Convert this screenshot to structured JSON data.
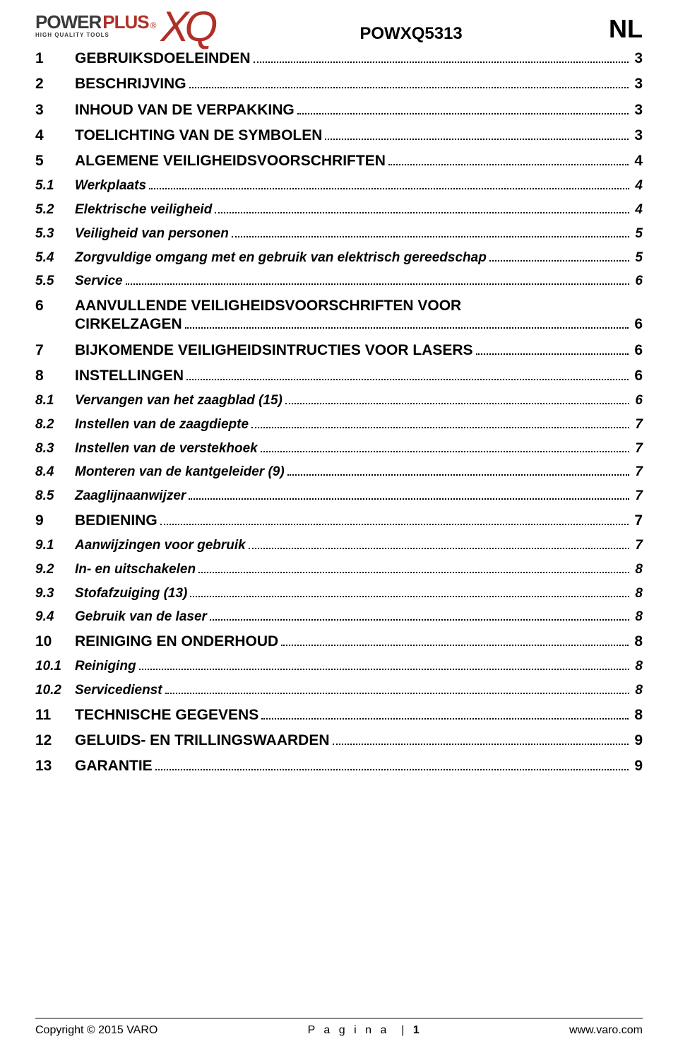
{
  "brand": {
    "word1": "POWER",
    "word2": "PLUS",
    "tagline": "HIGH QUALITY TOOLS",
    "sub_logo": "XQ",
    "color_primary": "#b03028",
    "color_secondary": "#3a3a3a"
  },
  "header": {
    "model": "POWXQ5313",
    "lang": "NL",
    "model_fontsize": 24,
    "lang_fontsize": 36
  },
  "toc_style": {
    "main_fontsize": 21,
    "sub_fontsize": 19,
    "leader_char": ".",
    "font_weight_main": "bold",
    "font_weight_sub": "bold-italic",
    "number_col_width": 56
  },
  "toc": [
    {
      "num": "1",
      "title": "GEBRUIKSDOELEINDEN",
      "page": "3",
      "level": 1
    },
    {
      "num": "2",
      "title": "BESCHRIJVING",
      "page": "3",
      "level": 1
    },
    {
      "num": "3",
      "title": "INHOUD VAN DE VERPAKKING",
      "page": "3",
      "level": 1
    },
    {
      "num": "4",
      "title": "TOELICHTING VAN DE SYMBOLEN",
      "page": "3",
      "level": 1
    },
    {
      "num": "5",
      "title": "ALGEMENE VEILIGHEIDSVOORSCHRIFTEN",
      "page": "4",
      "level": 1
    },
    {
      "num": "5.1",
      "title": "Werkplaats",
      "page": "4",
      "level": 2
    },
    {
      "num": "5.2",
      "title": "Elektrische veiligheid",
      "page": "4",
      "level": 2
    },
    {
      "num": "5.3",
      "title": "Veiligheid van personen",
      "page": "5",
      "level": 2
    },
    {
      "num": "5.4",
      "title": "Zorgvuldige omgang met en gebruik van elektrisch gereedschap",
      "page": "5",
      "level": 2
    },
    {
      "num": "5.5",
      "title": "Service",
      "page": "6",
      "level": 2
    },
    {
      "num": "6",
      "title": "AANVULLENDE VEILIGHEIDSVOORSCHRIFTEN VOOR CIRKELZAGEN",
      "page": "6",
      "level": 1,
      "wrap": true
    },
    {
      "num": "7",
      "title": "BIJKOMENDE VEILIGHEIDSINTRUCTIES VOOR LASERS",
      "page": "6",
      "level": 1
    },
    {
      "num": "8",
      "title": "INSTELLINGEN",
      "page": "6",
      "level": 1
    },
    {
      "num": "8.1",
      "title": "Vervangen van het zaagblad (15)",
      "page": "6",
      "level": 2
    },
    {
      "num": "8.2",
      "title": "Instellen van de zaagdiepte",
      "page": "7",
      "level": 2
    },
    {
      "num": "8.3",
      "title": "Instellen van de verstekhoek",
      "page": "7",
      "level": 2
    },
    {
      "num": "8.4",
      "title": "Monteren van de kantgeleider (9)",
      "page": "7",
      "level": 2
    },
    {
      "num": "8.5",
      "title": "Zaaglijnaanwijzer",
      "page": "7",
      "level": 2
    },
    {
      "num": "9",
      "title": "BEDIENING",
      "page": "7",
      "level": 1
    },
    {
      "num": "9.1",
      "title": "Aanwijzingen voor gebruik",
      "page": "7",
      "level": 2
    },
    {
      "num": "9.2",
      "title": "In- en uitschakelen",
      "page": "8",
      "level": 2
    },
    {
      "num": "9.3",
      "title": "Stofafzuiging (13)",
      "page": "8",
      "level": 2
    },
    {
      "num": "9.4",
      "title": "Gebruik van de laser",
      "page": "8",
      "level": 2
    },
    {
      "num": "10",
      "title": "REINIGING EN ONDERHOUD",
      "page": "8",
      "level": 1
    },
    {
      "num": "10.1",
      "title": "Reiniging",
      "page": "8",
      "level": 2
    },
    {
      "num": "10.2",
      "title": "Servicedienst",
      "page": "8",
      "level": 2
    },
    {
      "num": "11",
      "title": "TECHNISCHE GEGEVENS",
      "page": "8",
      "level": 1
    },
    {
      "num": "12",
      "title": "GELUIDS- EN TRILLINGSWAARDEN",
      "page": "9",
      "level": 1
    },
    {
      "num": "13",
      "title": "GARANTIE",
      "page": "9",
      "level": 1
    }
  ],
  "footer": {
    "left": "Copyright © 2015 VARO",
    "center_label": "P a g i n a",
    "page_num": "1",
    "right": "www.varo.com",
    "fontsize": 16
  }
}
